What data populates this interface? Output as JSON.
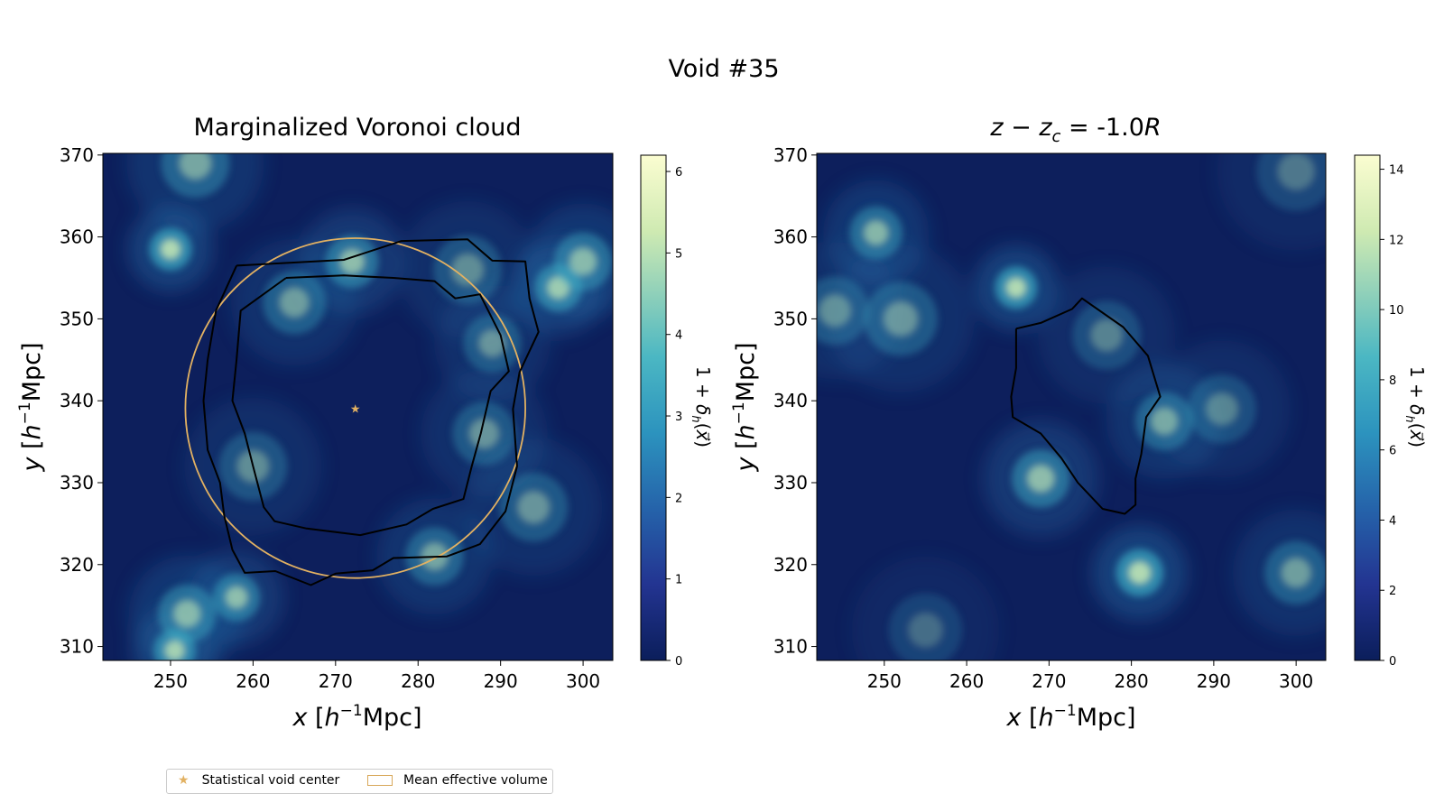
{
  "figure": {
    "suptitle": "Void #35",
    "legend": {
      "center_label": "Statistical void center",
      "volume_label": "Mean effective volume",
      "center_marker": "star",
      "accent_color": "#e2b162"
    }
  },
  "chart_data": [
    {
      "type": "heatmap",
      "title": "Marginalized Voronoi cloud",
      "xlabel": "x [h⁻¹Mpc]",
      "ylabel": "y [h⁻¹Mpc]",
      "xlim": [
        241.8,
        303.6
      ],
      "ylim": [
        308.3,
        370.2
      ],
      "xticks": [
        "250",
        "260",
        "270",
        "280",
        "290",
        "300"
      ],
      "yticks": [
        "310",
        "320",
        "330",
        "340",
        "350",
        "360",
        "370"
      ],
      "colormap": "YlGnBu",
      "colorbar": {
        "label": "1 + δh(x⃗)",
        "range": [
          0,
          6.2
        ],
        "ticks": [
          "0",
          "1",
          "2",
          "3",
          "4",
          "5",
          "6"
        ]
      },
      "void_center": {
        "x": 272.4,
        "y": 339.1
      },
      "effective_circle": {
        "cx": 272.4,
        "cy": 339.1,
        "r": 20.6
      },
      "outer_contour": [
        [
          258,
          356.5
        ],
        [
          271,
          357.2
        ],
        [
          278,
          359.5
        ],
        [
          286,
          359.7
        ],
        [
          289,
          357.1
        ],
        [
          293,
          357.0
        ],
        [
          293.5,
          352.5
        ],
        [
          294.6,
          348.4
        ],
        [
          292.3,
          343.5
        ],
        [
          291.5,
          339.0
        ],
        [
          292.0,
          332.0
        ],
        [
          290.6,
          326.5
        ],
        [
          287.5,
          322.5
        ],
        [
          283.5,
          321.0
        ],
        [
          277,
          320.8
        ],
        [
          274.5,
          319.3
        ],
        [
          270,
          318.9
        ],
        [
          267,
          317.5
        ],
        [
          262.7,
          319.2
        ],
        [
          259.0,
          319.0
        ],
        [
          257.5,
          321.8
        ],
        [
          256.5,
          326.0
        ],
        [
          256.0,
          330.0
        ],
        [
          254.5,
          334.0
        ],
        [
          254.0,
          340.0
        ],
        [
          254.5,
          345.0
        ],
        [
          255.5,
          351.0
        ],
        [
          258,
          356.5
        ]
      ],
      "inner_contour": [
        [
          264,
          355.0
        ],
        [
          271,
          355.3
        ],
        [
          277,
          355.0
        ],
        [
          282,
          354.6
        ],
        [
          284.5,
          352.5
        ],
        [
          287.5,
          353.0
        ],
        [
          290,
          348.0
        ],
        [
          291,
          343.6
        ],
        [
          288.8,
          341.2
        ],
        [
          287.6,
          336.0
        ],
        [
          286.5,
          332.0
        ],
        [
          285.5,
          328.0
        ],
        [
          281.8,
          326.8
        ],
        [
          278.6,
          324.9
        ],
        [
          273.0,
          323.6
        ],
        [
          266.5,
          324.4
        ],
        [
          262.6,
          325.3
        ],
        [
          261.3,
          327.0
        ],
        [
          260.0,
          332.0
        ],
        [
          259.0,
          336.0
        ],
        [
          257.5,
          340.0
        ],
        [
          258.0,
          345.0
        ],
        [
          258.5,
          351.0
        ],
        [
          264,
          355.0
        ]
      ],
      "blobs": [
        {
          "x": 250,
          "y": 358.5,
          "a": 1.0,
          "s": 1.6
        },
        {
          "x": 252,
          "y": 314,
          "a": 0.7,
          "s": 2.2
        },
        {
          "x": 250.5,
          "y": 309.5,
          "a": 0.9,
          "s": 1.6
        },
        {
          "x": 258,
          "y": 316,
          "a": 0.75,
          "s": 1.8
        },
        {
          "x": 297,
          "y": 353.8,
          "a": 0.85,
          "s": 1.8
        },
        {
          "x": 300,
          "y": 357,
          "a": 0.7,
          "s": 2.2
        },
        {
          "x": 272,
          "y": 357,
          "a": 0.75,
          "s": 2.0
        },
        {
          "x": 282,
          "y": 321,
          "a": 0.6,
          "s": 2.2
        },
        {
          "x": 288,
          "y": 336,
          "a": 0.5,
          "s": 2.4
        },
        {
          "x": 253,
          "y": 369,
          "a": 0.6,
          "s": 2.6
        },
        {
          "x": 265,
          "y": 352,
          "a": 0.55,
          "s": 2.4
        },
        {
          "x": 294,
          "y": 327,
          "a": 0.5,
          "s": 2.6
        },
        {
          "x": 260,
          "y": 332,
          "a": 0.45,
          "s": 2.6
        },
        {
          "x": 286,
          "y": 356,
          "a": 0.45,
          "s": 2.6
        },
        {
          "x": 289,
          "y": 347,
          "a": 0.5,
          "s": 2.2
        }
      ]
    },
    {
      "type": "heatmap",
      "title": "z − zc = -1.0R",
      "xlabel": "x [h⁻¹Mpc]",
      "ylabel": "y [h⁻¹Mpc]",
      "xlim": [
        241.8,
        303.6
      ],
      "ylim": [
        308.3,
        370.2
      ],
      "xticks": [
        "250",
        "260",
        "270",
        "280",
        "290",
        "300"
      ],
      "yticks": [
        "310",
        "320",
        "330",
        "340",
        "350",
        "360",
        "370"
      ],
      "colormap": "YlGnBu",
      "colorbar": {
        "label": "1 + δh(x⃗)",
        "range": [
          0,
          14.4
        ],
        "ticks": [
          "0",
          "2",
          "4",
          "6",
          "8",
          "10",
          "12",
          "14"
        ]
      },
      "contour": [
        [
          266,
          348.8
        ],
        [
          269,
          349.5
        ],
        [
          272.8,
          351.2
        ],
        [
          274,
          352.5
        ],
        [
          279,
          349.0
        ],
        [
          282,
          345.5
        ],
        [
          283.5,
          340.5
        ],
        [
          281.8,
          338.0
        ],
        [
          281.2,
          333.5
        ],
        [
          280.5,
          330.5
        ],
        [
          280.5,
          327.3
        ],
        [
          279.2,
          326.2
        ],
        [
          276.5,
          326.8
        ],
        [
          273.5,
          330.0
        ],
        [
          271.5,
          333.0
        ],
        [
          269,
          336.0
        ],
        [
          265.6,
          338.0
        ],
        [
          265.4,
          340.5
        ],
        [
          266,
          344.0
        ],
        [
          266,
          348.8
        ]
      ],
      "blobs": [
        {
          "x": 266,
          "y": 353.8,
          "a": 1.0,
          "s": 1.6
        },
        {
          "x": 281,
          "y": 319,
          "a": 1.0,
          "s": 1.8
        },
        {
          "x": 249,
          "y": 360.5,
          "a": 0.7,
          "s": 2.0
        },
        {
          "x": 269,
          "y": 330.5,
          "a": 0.75,
          "s": 2.2
        },
        {
          "x": 284,
          "y": 337.5,
          "a": 0.6,
          "s": 2.2
        },
        {
          "x": 300,
          "y": 319,
          "a": 0.55,
          "s": 2.4
        },
        {
          "x": 252,
          "y": 350,
          "a": 0.5,
          "s": 2.8
        },
        {
          "x": 300,
          "y": 368,
          "a": 0.35,
          "s": 3.0
        },
        {
          "x": 291,
          "y": 339,
          "a": 0.4,
          "s": 2.6
        },
        {
          "x": 244,
          "y": 351,
          "a": 0.45,
          "s": 2.6
        },
        {
          "x": 277,
          "y": 348,
          "a": 0.4,
          "s": 2.6
        },
        {
          "x": 255,
          "y": 312,
          "a": 0.3,
          "s": 2.8
        }
      ]
    }
  ]
}
